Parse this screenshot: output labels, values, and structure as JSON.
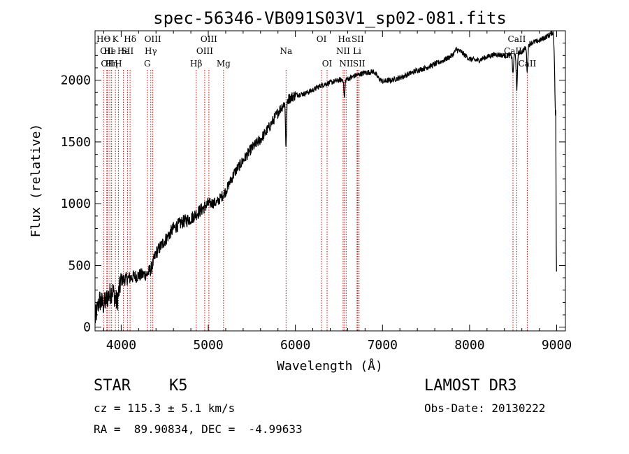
{
  "chart_data": {
    "type": "line",
    "title": "spec-56346-VB091S03V1_sp02-081.fits",
    "xlabel": "Wavelength (Å)",
    "ylabel": "Flux (relative)",
    "xlim": [
      3700,
      9100
    ],
    "ylim": [
      -30,
      2400
    ],
    "x_ticks": [
      4000,
      5000,
      6000,
      7000,
      8000,
      9000
    ],
    "y_ticks": [
      0,
      500,
      1000,
      1500,
      2000
    ],
    "x_tick_labels": [
      "4000",
      "5000",
      "6000",
      "7000",
      "8000",
      "9000"
    ],
    "y_tick_labels": [
      "0",
      "500",
      "1000",
      "1500",
      "2000"
    ],
    "line_color": "#000000",
    "marker_color": "#cc0000",
    "series": [
      {
        "name": "flux",
        "anchors": [
          [
            3700,
            60
          ],
          [
            3750,
            220
          ],
          [
            3800,
            180
          ],
          [
            3850,
            250
          ],
          [
            3900,
            300
          ],
          [
            3950,
            200
          ],
          [
            4000,
            380
          ],
          [
            4100,
            400
          ],
          [
            4200,
            420
          ],
          [
            4300,
            430
          ],
          [
            4350,
            480
          ],
          [
            4400,
            600
          ],
          [
            4500,
            700
          ],
          [
            4600,
            800
          ],
          [
            4700,
            850
          ],
          [
            4800,
            880
          ],
          [
            4900,
            940
          ],
          [
            5000,
            1000
          ],
          [
            5100,
            1010
          ],
          [
            5200,
            1100
          ],
          [
            5300,
            1250
          ],
          [
            5400,
            1350
          ],
          [
            5500,
            1450
          ],
          [
            5600,
            1520
          ],
          [
            5700,
            1620
          ],
          [
            5800,
            1740
          ],
          [
            5900,
            1840
          ],
          [
            6000,
            1880
          ],
          [
            6100,
            1890
          ],
          [
            6200,
            1920
          ],
          [
            6300,
            1960
          ],
          [
            6400,
            1980
          ],
          [
            6500,
            2000
          ],
          [
            6600,
            2010
          ],
          [
            6700,
            2040
          ],
          [
            6800,
            2060
          ],
          [
            6900,
            2070
          ],
          [
            6950,
            2020
          ],
          [
            7000,
            1990
          ],
          [
            7100,
            2000
          ],
          [
            7200,
            2020
          ],
          [
            7300,
            2050
          ],
          [
            7400,
            2080
          ],
          [
            7500,
            2100
          ],
          [
            7600,
            2130
          ],
          [
            7700,
            2160
          ],
          [
            7800,
            2200
          ],
          [
            7850,
            2250
          ],
          [
            7900,
            2230
          ],
          [
            8000,
            2170
          ],
          [
            8100,
            2160
          ],
          [
            8200,
            2190
          ],
          [
            8300,
            2210
          ],
          [
            8400,
            2200
          ],
          [
            8500,
            2200
          ],
          [
            8600,
            2230
          ],
          [
            8700,
            2300
          ],
          [
            8800,
            2320
          ],
          [
            8900,
            2360
          ],
          [
            8960,
            2390
          ],
          [
            8990,
            2020
          ]
        ],
        "absorption_dips": [
          {
            "x": 5893,
            "depth": 380
          },
          {
            "x": 6563,
            "depth": 150
          },
          {
            "x": 8498,
            "depth": 150
          },
          {
            "x": 8542,
            "depth": 310
          },
          {
            "x": 8662,
            "depth": 200
          },
          {
            "x": 8985,
            "depth": 350
          }
        ]
      }
    ],
    "line_markers": [
      {
        "x": 3798,
        "label": "HΘ",
        "row": 0
      },
      {
        "x": 3835,
        "label": "OII",
        "row": 1
      },
      {
        "x": 3845,
        "label": "OII",
        "row": 2
      },
      {
        "x": 3870,
        "label": "He",
        "row": 1
      },
      {
        "x": 3890,
        "label": "Hη",
        "row": 2
      },
      {
        "x": 3934,
        "label": "K",
        "row": 0
      },
      {
        "x": 3968,
        "label": "H",
        "row": 2
      },
      {
        "x": 4026,
        "label": "He",
        "row": 1
      },
      {
        "x": 4072,
        "label": "SII",
        "row": 1
      },
      {
        "x": 4102,
        "label": "Hδ",
        "row": 0
      },
      {
        "x": 4300,
        "label": "G",
        "row": 2
      },
      {
        "x": 4340,
        "label": "Hγ",
        "row": 1
      },
      {
        "x": 4363,
        "label": "OIII",
        "row": 0
      },
      {
        "x": 4861,
        "label": "Hβ",
        "row": 2
      },
      {
        "x": 4959,
        "label": "OIII",
        "row": 1
      },
      {
        "x": 5007,
        "label": "OIII",
        "row": 0
      },
      {
        "x": 5175,
        "label": "Mg",
        "row": 2
      },
      {
        "x": 5893,
        "label": "Na",
        "row": 1
      },
      {
        "x": 6300,
        "label": "OI",
        "row": 0
      },
      {
        "x": 6364,
        "label": "OI",
        "row": 2
      },
      {
        "x": 6548,
        "label": "NII",
        "row": 1
      },
      {
        "x": 6563,
        "label": "Hα",
        "row": 0
      },
      {
        "x": 6583,
        "label": "NII",
        "row": 2
      },
      {
        "x": 6708,
        "label": "Li",
        "row": 1
      },
      {
        "x": 6716,
        "label": "SII",
        "row": 0
      },
      {
        "x": 6731,
        "label": "SII",
        "row": 2
      },
      {
        "x": 8498,
        "label": "CaII",
        "row": 1
      },
      {
        "x": 8542,
        "label": "CaII",
        "row": 0
      },
      {
        "x": 8662,
        "label": "CaII",
        "row": 2
      }
    ]
  },
  "info": {
    "class_label": "STAR",
    "subclass_label": "K5",
    "survey": "LAMOST DR3",
    "cz": "cz = 115.3 ± 5.1 km/s",
    "obs_date": "Obs-Date: 20130222",
    "coords": "RA =  89.90834, DEC =  -4.99633"
  }
}
